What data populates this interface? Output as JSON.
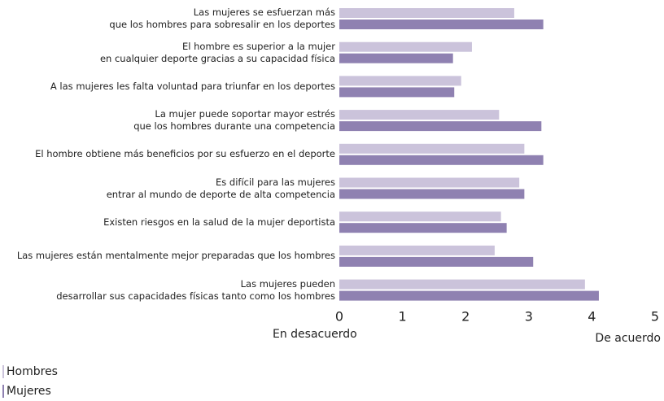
{
  "chart_data": {
    "type": "barh",
    "categories": [
      "Las mujeres se esfuerzan más\nque los hombres para sobresalir en los deportes",
      "El hombre es superior a la mujer\nen cualquier deporte gracias a su capacidad física",
      "A las mujeres les falta voluntad para triunfar en los deportes",
      "La mujer puede soportar mayor estrés\nque los hombres durante una competencia",
      "El hombre obtiene más beneficios por su esfuerzo en el deporte",
      "Es difícil para las mujeres\nentrar al mundo de deporte de alta competencia",
      "Existen riesgos en la salud de la mujer deportista",
      "Las mujeres están mentalmente mejor preparadas que los hombres",
      "Las mujeres pueden\ndesarrollar sus capacidades físicas tanto como los hombres"
    ],
    "series": [
      {
        "name": "Hombres",
        "color": "#cbc3db",
        "values": [
          2.77,
          2.1,
          1.93,
          2.53,
          2.93,
          2.85,
          2.56,
          2.46,
          3.89
        ]
      },
      {
        "name": "Mujeres",
        "color": "#8f81b1",
        "values": [
          3.23,
          1.8,
          1.82,
          3.2,
          3.23,
          2.93,
          2.65,
          3.07,
          4.11
        ]
      }
    ],
    "xlim": [
      0,
      5
    ],
    "xticks": [
      0,
      1,
      2,
      3,
      4,
      5
    ],
    "annotations": [
      "En desacuerdo",
      "De acuerdo"
    ],
    "legend": "bottom-left"
  }
}
